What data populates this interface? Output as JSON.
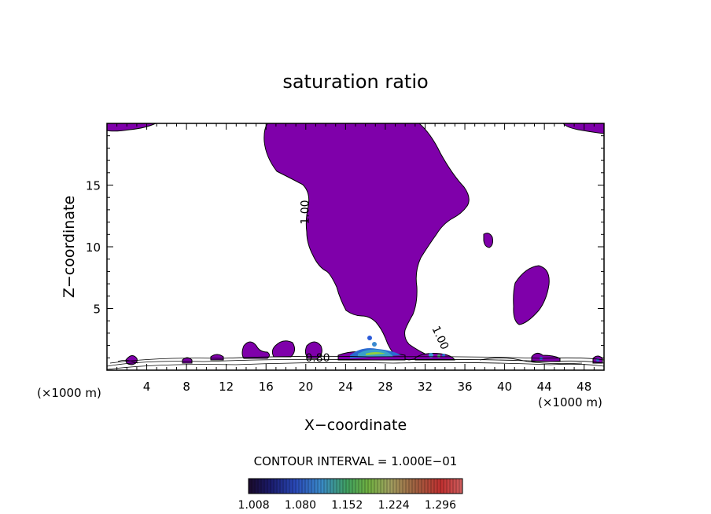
{
  "chart_data": {
    "type": "heatmap",
    "title": "saturation ratio",
    "xlabel": "X−coordinate",
    "ylabel": "Z−coordinate",
    "x_unit_left": "(×1000 m)",
    "x_unit_right": "(×1000 m)",
    "xlim": [
      0,
      50
    ],
    "ylim": [
      0,
      20
    ],
    "x_ticks": [
      4,
      8,
      12,
      16,
      20,
      24,
      28,
      32,
      36,
      40,
      44,
      48
    ],
    "y_ticks": [
      5,
      10,
      15
    ],
    "contour_labels": [
      {
        "text": "1.00",
        "x": 20.3,
        "y": 12.8,
        "rotate": -90
      },
      {
        "text": "1.00",
        "x": 33.2,
        "y": 2.5,
        "rotate": 65
      },
      {
        "text": "0.80",
        "x": 21.2,
        "y": 0.7,
        "rotate": 0
      }
    ],
    "contour_interval_text": "CONTOUR INTERVAL = 1.000E−01",
    "colorbar_ticks": [
      "1.008",
      "1.080",
      "1.152",
      "1.224",
      "1.296"
    ],
    "colorbar_range": [
      1.0,
      1.33
    ],
    "fill_color": "#7f00aa",
    "grid": false
  }
}
